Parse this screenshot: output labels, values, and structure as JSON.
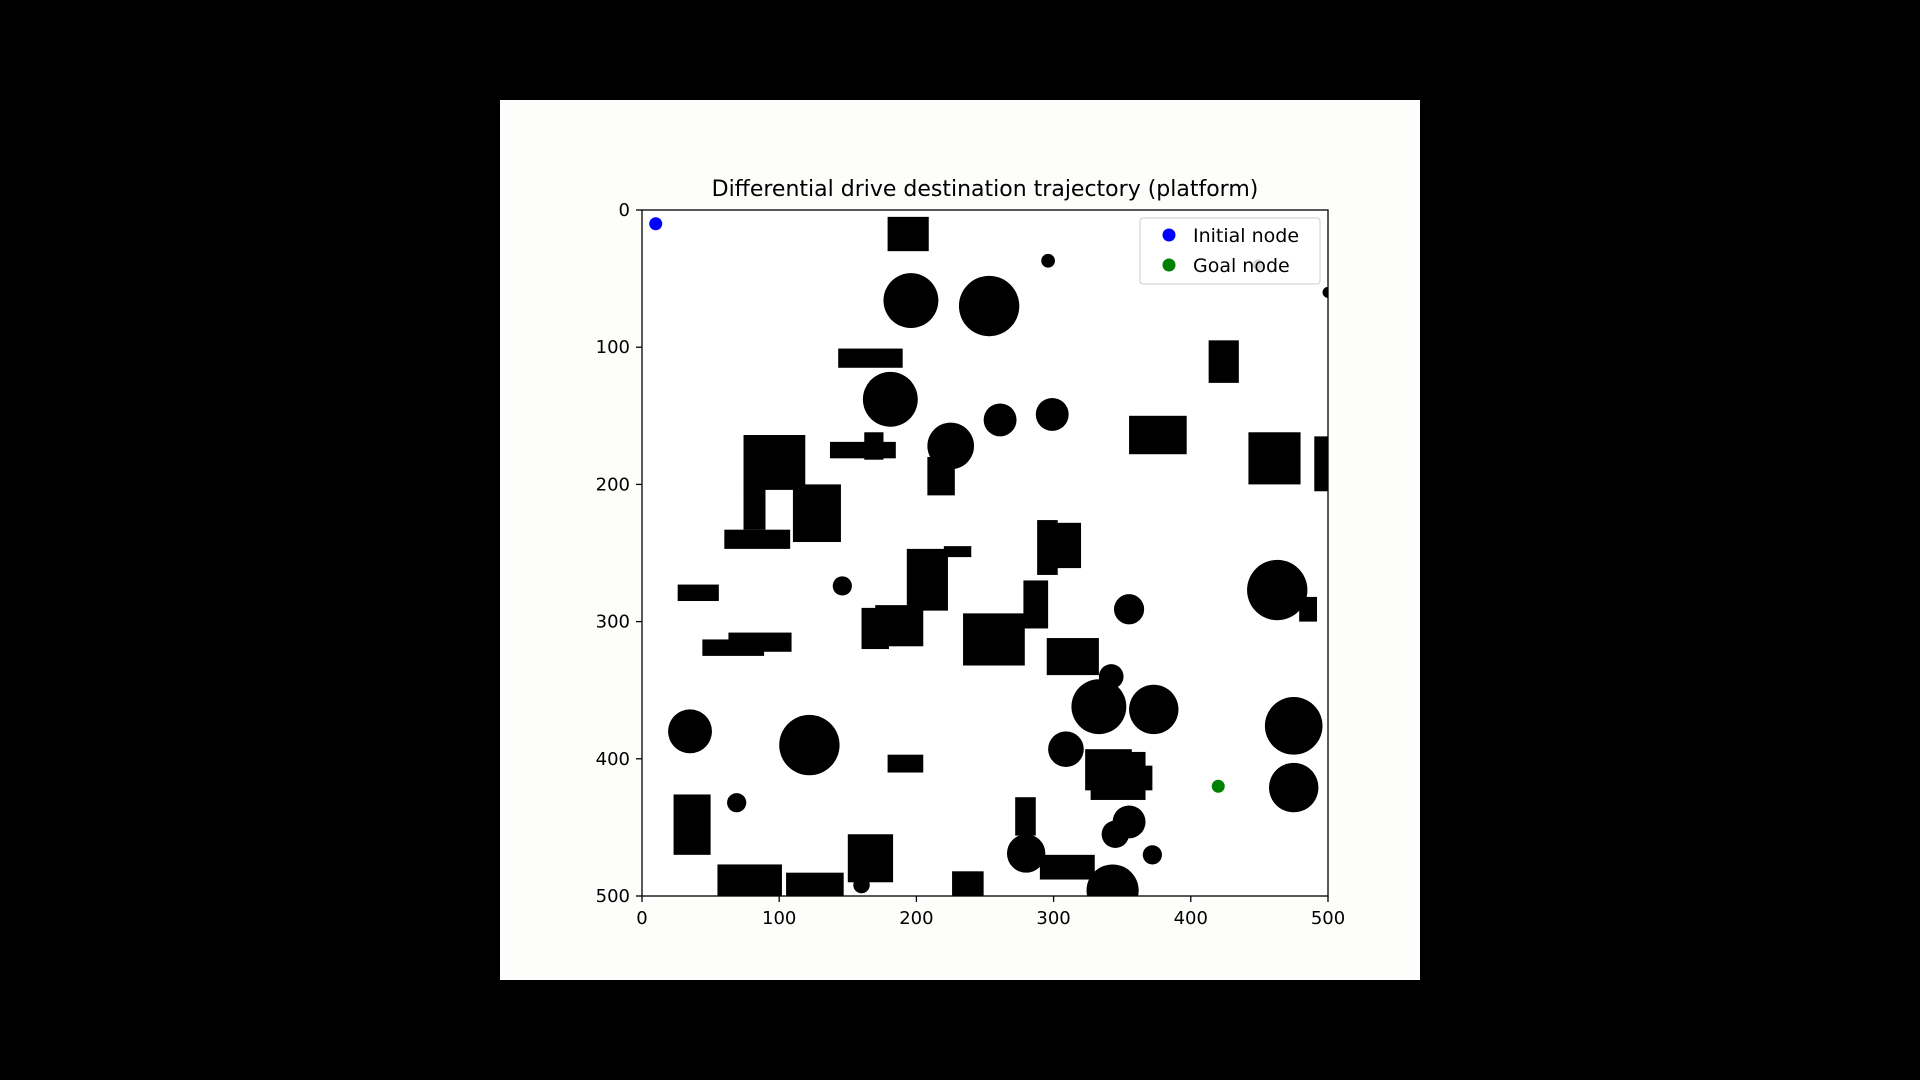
{
  "chart_data": {
    "type": "scatter",
    "title": "Differential drive destination trajectory (platform)",
    "xlabel": "",
    "ylabel": "",
    "xlim": [
      0,
      500
    ],
    "ylim": [
      500,
      0
    ],
    "y_inverted": true,
    "grid": false,
    "legend_position": "top-right",
    "xticks": [
      0,
      100,
      200,
      300,
      400,
      500
    ],
    "yticks": [
      0,
      100,
      200,
      300,
      400,
      500
    ],
    "series": [
      {
        "name": "Initial node",
        "color": "#0000ff",
        "points": [
          [
            10,
            10
          ]
        ]
      },
      {
        "name": "Goal node",
        "color": "#008000",
        "points": [
          [
            420,
            420
          ]
        ]
      }
    ],
    "obstacle_color": "#000000",
    "obstacles": {
      "rects": [
        [
          179,
          5,
          30,
          25
        ],
        [
          143,
          101,
          47,
          14
        ],
        [
          413,
          95,
          22,
          31
        ],
        [
          74,
          164,
          45,
          40
        ],
        [
          137,
          169,
          48,
          12
        ],
        [
          162,
          162,
          14,
          20
        ],
        [
          208,
          180,
          20,
          28
        ],
        [
          355,
          150,
          42,
          28
        ],
        [
          442,
          162,
          38,
          38
        ],
        [
          490,
          165,
          10,
          40
        ],
        [
          74,
          200,
          16,
          33
        ],
        [
          60,
          233,
          48,
          14
        ],
        [
          110,
          200,
          35,
          42
        ],
        [
          193,
          247,
          30,
          45
        ],
        [
          220,
          245,
          20,
          8
        ],
        [
          288,
          226,
          15,
          40
        ],
        [
          300,
          228,
          20,
          33
        ],
        [
          26,
          273,
          30,
          12
        ],
        [
          160,
          290,
          20,
          30
        ],
        [
          170,
          288,
          35,
          30
        ],
        [
          278,
          270,
          18,
          35
        ],
        [
          234,
          294,
          45,
          38
        ],
        [
          295,
          312,
          38,
          27
        ],
        [
          479,
          282,
          13,
          18
        ],
        [
          44,
          313,
          45,
          12
        ],
        [
          63,
          308,
          46,
          14
        ],
        [
          179,
          397,
          26,
          13
        ],
        [
          323,
          393,
          34,
          30
        ],
        [
          327,
          395,
          40,
          35
        ],
        [
          350,
          405,
          22,
          18
        ],
        [
          23,
          426,
          27,
          44
        ],
        [
          272,
          428,
          15,
          28
        ],
        [
          150,
          455,
          33,
          35
        ],
        [
          55,
          477,
          47,
          28
        ],
        [
          105,
          483,
          42,
          20
        ],
        [
          226,
          482,
          23,
          20
        ],
        [
          290,
          470,
          40,
          18
        ]
      ],
      "circles": [
        [
          196,
          66,
          20
        ],
        [
          253,
          70,
          22
        ],
        [
          296,
          37,
          5
        ],
        [
          181,
          138,
          20
        ],
        [
          261,
          153,
          12
        ],
        [
          299,
          149,
          12
        ],
        [
          225,
          172,
          17
        ],
        [
          463,
          277,
          22
        ],
        [
          146,
          274,
          7
        ],
        [
          355,
          291,
          11
        ],
        [
          342,
          340,
          9
        ],
        [
          333,
          362,
          20
        ],
        [
          373,
          364,
          18
        ],
        [
          35,
          380,
          16
        ],
        [
          122,
          390,
          22
        ],
        [
          309,
          393,
          13
        ],
        [
          475,
          376,
          21
        ],
        [
          475,
          421,
          18
        ],
        [
          69,
          432,
          7
        ],
        [
          355,
          446,
          12
        ],
        [
          345,
          455,
          10
        ],
        [
          280,
          469,
          14
        ],
        [
          372,
          470,
          7
        ],
        [
          343,
          496,
          19
        ],
        [
          160,
          492,
          6
        ],
        [
          449,
          40,
          4
        ],
        [
          500,
          60,
          4
        ]
      ]
    }
  }
}
